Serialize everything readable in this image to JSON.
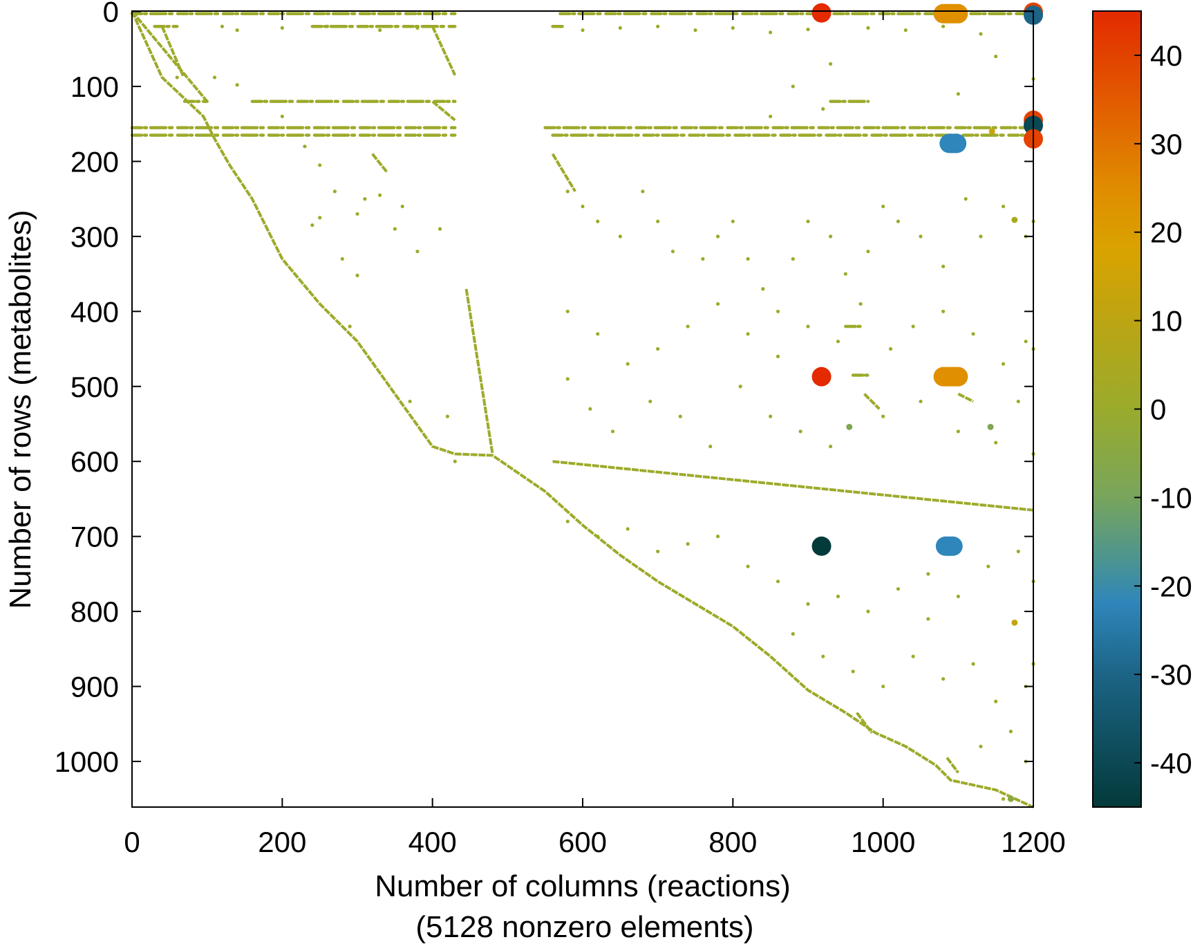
{
  "chart_data": {
    "type": "scatter",
    "subtype": "sparsity-pattern",
    "xlabel": "Number of columns (reactions)",
    "xlabel2": "(5128 nonzero elements)",
    "ylabel": "Number of rows (metabolites)",
    "xlim": [
      0,
      1200
    ],
    "ylim": [
      1061,
      0
    ],
    "xticks": [
      "0",
      "200",
      "400",
      "600",
      "800",
      "1000",
      "1200"
    ],
    "yticks": [
      "0",
      "100",
      "200",
      "300",
      "400",
      "500",
      "600",
      "700",
      "800",
      "900",
      "1000"
    ],
    "colorbar": {
      "range": [
        -45,
        45
      ],
      "ticks": [
        "40",
        "30",
        "20",
        "10",
        "0",
        "-10",
        "-20",
        "-30",
        "-40"
      ],
      "stops": [
        {
          "v": 45,
          "c": "#e32a00"
        },
        {
          "v": 35,
          "c": "#e25a00"
        },
        {
          "v": 25,
          "c": "#e08c00"
        },
        {
          "v": 18,
          "c": "#d9a300"
        },
        {
          "v": 10,
          "c": "#bca513"
        },
        {
          "v": 0,
          "c": "#9aab2c"
        },
        {
          "v": -10,
          "c": "#78a55c"
        },
        {
          "v": -17,
          "c": "#4c9490"
        },
        {
          "v": -22,
          "c": "#2f86ba"
        },
        {
          "v": -30,
          "c": "#1c6486"
        },
        {
          "v": -45,
          "c": "#033a3a"
        }
      ]
    },
    "grid": false,
    "dominant_value": 1,
    "diagonal_segments": [
      [
        [
          0,
          0
        ],
        [
          40,
          88
        ],
        [
          95,
          140
        ],
        [
          110,
          170
        ],
        [
          130,
          205
        ],
        [
          160,
          250
        ],
        [
          200,
          330
        ],
        [
          250,
          390
        ],
        [
          300,
          440
        ],
        [
          350,
          510
        ],
        [
          400,
          580
        ],
        [
          430,
          590
        ],
        [
          480,
          592
        ],
        [
          550,
          640
        ],
        [
          600,
          685
        ],
        [
          650,
          725
        ],
        [
          700,
          760
        ],
        [
          750,
          790
        ],
        [
          800,
          820
        ],
        [
          850,
          860
        ],
        [
          900,
          905
        ],
        [
          950,
          935
        ],
        [
          990,
          962
        ],
        [
          1030,
          980
        ],
        [
          1070,
          1005
        ],
        [
          1090,
          1025
        ],
        [
          1150,
          1038
        ],
        [
          1200,
          1061
        ]
      ],
      [
        [
          40,
          20
        ],
        [
          68,
          86
        ]
      ],
      [
        [
          400,
          20
        ],
        [
          430,
          85
        ]
      ],
      [
        [
          400,
          120
        ],
        [
          430,
          145
        ]
      ],
      [
        [
          0,
          0
        ],
        [
          100,
          120
        ]
      ],
      [
        [
          320,
          190
        ],
        [
          340,
          215
        ]
      ],
      [
        [
          445,
          370
        ],
        [
          480,
          590
        ]
      ],
      [
        [
          560,
          190
        ],
        [
          590,
          240
        ]
      ],
      [
        [
          560,
          600
        ],
        [
          1200,
          665
        ]
      ],
      [
        [
          1100,
          510
        ],
        [
          1120,
          520
        ]
      ],
      [
        [
          975,
          510
        ],
        [
          995,
          530
        ]
      ],
      [
        [
          965,
          935
        ],
        [
          985,
          962
        ]
      ],
      [
        [
          1085,
          995
        ],
        [
          1100,
          1015
        ]
      ]
    ],
    "dense_bands": [
      [
        3,
        0,
        430
      ],
      [
        3,
        570,
        1200
      ],
      [
        20,
        30,
        60
      ],
      [
        20,
        240,
        430
      ],
      [
        20,
        560,
        575
      ],
      [
        155,
        0,
        430
      ],
      [
        155,
        550,
        1200
      ],
      [
        165,
        0,
        430
      ],
      [
        165,
        560,
        1200
      ],
      [
        120,
        70,
        100
      ],
      [
        120,
        160,
        430
      ],
      [
        120,
        930,
        980
      ],
      [
        485,
        960,
        980
      ],
      [
        420,
        950,
        970
      ]
    ],
    "scattered_points": [
      [
        120,
        20
      ],
      [
        140,
        25
      ],
      [
        200,
        22
      ],
      [
        260,
        20
      ],
      [
        330,
        25
      ],
      [
        380,
        22
      ],
      [
        600,
        25
      ],
      [
        650,
        22
      ],
      [
        700,
        20
      ],
      [
        750,
        25
      ],
      [
        800,
        22
      ],
      [
        850,
        28
      ],
      [
        900,
        24
      ],
      [
        980,
        22
      ],
      [
        1030,
        25
      ],
      [
        1080,
        20
      ],
      [
        1130,
        30
      ],
      [
        60,
        88
      ],
      [
        110,
        88
      ],
      [
        140,
        98
      ],
      [
        200,
        140
      ],
      [
        230,
        180
      ],
      [
        250,
        205
      ],
      [
        270,
        240
      ],
      [
        300,
        270
      ],
      [
        350,
        290
      ],
      [
        380,
        320
      ],
      [
        250,
        275
      ],
      [
        280,
        330
      ],
      [
        300,
        352
      ],
      [
        240,
        285
      ],
      [
        330,
        245
      ],
      [
        360,
        260
      ],
      [
        410,
        290
      ],
      [
        290,
        420
      ],
      [
        310,
        250
      ],
      [
        370,
        520
      ],
      [
        420,
        540
      ],
      [
        430,
        600
      ],
      [
        580,
        240
      ],
      [
        600,
        260
      ],
      [
        620,
        280
      ],
      [
        650,
        300
      ],
      [
        680,
        240
      ],
      [
        700,
        280
      ],
      [
        720,
        320
      ],
      [
        760,
        330
      ],
      [
        780,
        300
      ],
      [
        800,
        280
      ],
      [
        820,
        330
      ],
      [
        840,
        370
      ],
      [
        860,
        400
      ],
      [
        880,
        330
      ],
      [
        900,
        280
      ],
      [
        930,
        300
      ],
      [
        950,
        350
      ],
      [
        980,
        320
      ],
      [
        1000,
        260
      ],
      [
        1020,
        280
      ],
      [
        1050,
        300
      ],
      [
        1080,
        340
      ],
      [
        1110,
        250
      ],
      [
        1130,
        300
      ],
      [
        1160,
        260
      ],
      [
        1190,
        300
      ],
      [
        580,
        400
      ],
      [
        620,
        430
      ],
      [
        660,
        470
      ],
      [
        700,
        450
      ],
      [
        740,
        420
      ],
      [
        780,
        390
      ],
      [
        820,
        430
      ],
      [
        860,
        460
      ],
      [
        900,
        420
      ],
      [
        940,
        440
      ],
      [
        970,
        390
      ],
      [
        1010,
        450
      ],
      [
        1040,
        420
      ],
      [
        1080,
        400
      ],
      [
        1120,
        430
      ],
      [
        1160,
        470
      ],
      [
        1190,
        440
      ],
      [
        580,
        490
      ],
      [
        610,
        530
      ],
      [
        640,
        560
      ],
      [
        690,
        520
      ],
      [
        730,
        540
      ],
      [
        770,
        580
      ],
      [
        810,
        500
      ],
      [
        850,
        540
      ],
      [
        890,
        560
      ],
      [
        930,
        580
      ],
      [
        1000,
        540
      ],
      [
        1050,
        520
      ],
      [
        1100,
        560
      ],
      [
        1150,
        575
      ],
      [
        1180,
        520
      ],
      [
        580,
        680
      ],
      [
        620,
        700
      ],
      [
        660,
        690
      ],
      [
        700,
        720
      ],
      [
        740,
        710
      ],
      [
        780,
        700
      ],
      [
        820,
        740
      ],
      [
        860,
        760
      ],
      [
        900,
        790
      ],
      [
        940,
        780
      ],
      [
        980,
        800
      ],
      [
        1020,
        770
      ],
      [
        1060,
        750
      ],
      [
        1100,
        780
      ],
      [
        1140,
        740
      ],
      [
        1180,
        720
      ],
      [
        920,
        860
      ],
      [
        960,
        880
      ],
      [
        1000,
        900
      ],
      [
        1040,
        860
      ],
      [
        1080,
        890
      ],
      [
        1120,
        870
      ],
      [
        1150,
        920
      ],
      [
        1190,
        900
      ],
      [
        880,
        830
      ],
      [
        1060,
        810
      ],
      [
        1170,
        960
      ],
      [
        1130,
        980
      ],
      [
        1190,
        1000
      ],
      [
        1160,
        1050
      ],
      [
        1200,
        590
      ],
      [
        1200,
        760
      ],
      [
        1200,
        870
      ],
      [
        1200,
        450
      ],
      [
        1200,
        280
      ],
      [
        1200,
        90
      ],
      [
        1150,
        60
      ],
      [
        1100,
        110
      ],
      [
        930,
        70
      ],
      [
        880,
        100
      ],
      [
        920,
        130
      ],
      [
        850,
        140
      ]
    ],
    "highlighted_elements": [
      {
        "col": 918,
        "row": 2,
        "value": 45
      },
      {
        "col": 918,
        "row": 487,
        "value": 45
      },
      {
        "col": 918,
        "row": 713,
        "value": -45
      },
      {
        "col": 1080,
        "row": 3,
        "value": 24,
        "col_end": 1100
      },
      {
        "col": 1080,
        "row": 487,
        "value": 24,
        "col_end": 1100
      },
      {
        "col": 1088,
        "row": 176,
        "value": -22,
        "col_end": 1098
      },
      {
        "col": 1083,
        "row": 713,
        "value": -22,
        "col_end": 1093
      },
      {
        "col": 1200,
        "row": 1,
        "value": 40
      },
      {
        "col": 1200,
        "row": 5,
        "value": -30
      },
      {
        "col": 1200,
        "row": 145,
        "value": 40
      },
      {
        "col": 1200,
        "row": 152,
        "value": -40
      },
      {
        "col": 1200,
        "row": 170,
        "value": 40
      },
      {
        "col": 955,
        "row": 554,
        "value": -8,
        "small": true
      },
      {
        "col": 1143,
        "row": 554,
        "value": -8,
        "small": true
      },
      {
        "col": 1175,
        "row": 815,
        "value": 12,
        "small": true
      },
      {
        "col": 1175,
        "row": 278,
        "value": 4,
        "small": true
      },
      {
        "col": 1145,
        "row": 160,
        "value": 12,
        "small": true
      },
      {
        "col": 1170,
        "row": 1050,
        "value": -5,
        "small": true
      }
    ]
  }
}
